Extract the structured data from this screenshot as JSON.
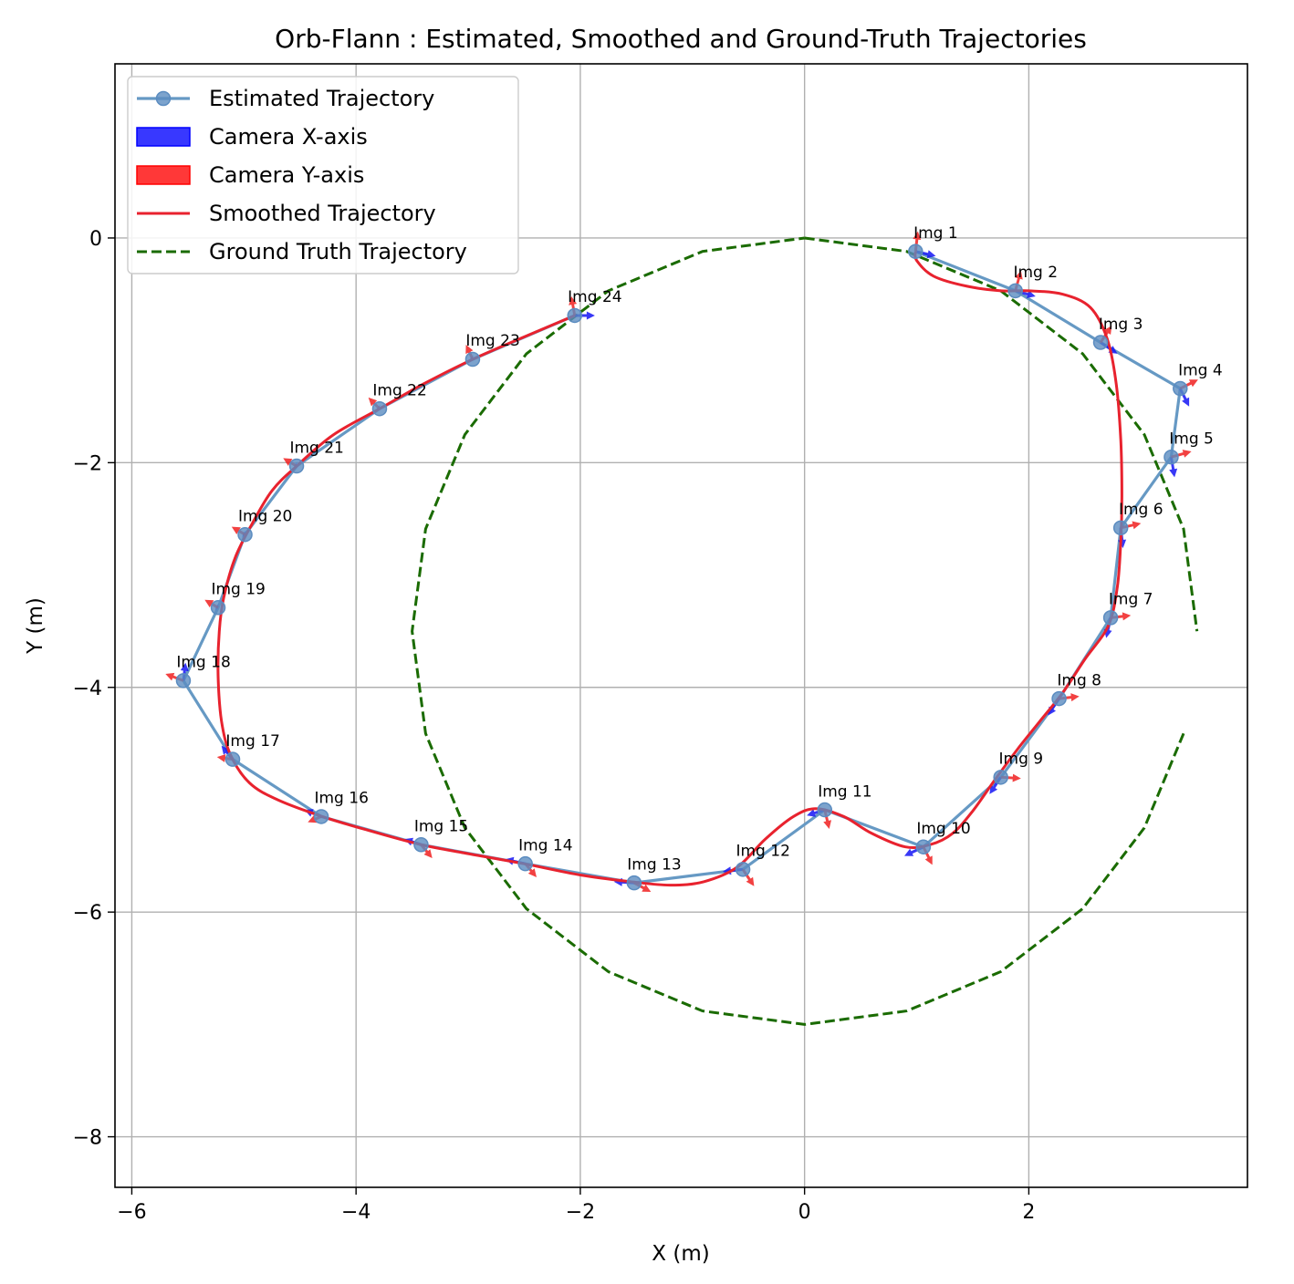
{
  "chart_data": {
    "type": "line",
    "title": "Orb-Flann : Estimated, Smoothed and Ground-Truth Trajectories",
    "xlabel": "X (m)",
    "ylabel": "Y (m)",
    "xlim": [
      -6.15,
      3.95
    ],
    "ylim": [
      -8.45,
      1.55
    ],
    "x_ticks": [
      -6,
      -4,
      -2,
      0,
      2
    ],
    "y_ticks": [
      0,
      -2,
      -4,
      -6,
      -8
    ],
    "x_tick_labels": [
      "−6",
      "−4",
      "−2",
      "0",
      "2"
    ],
    "y_tick_labels": [
      "0",
      "−2",
      "−4",
      "−6",
      "−8"
    ],
    "grid": true,
    "legend_position": "top-left",
    "legend": [
      {
        "label": "Estimated Trajectory",
        "kind": "line-marker",
        "color": "#6699c4"
      },
      {
        "label": "Camera X-axis",
        "kind": "patch",
        "color": "#0000ff"
      },
      {
        "label": "Camera Y-axis",
        "kind": "patch",
        "color": "#ff0000"
      },
      {
        "label": "Smoothed Trajectory",
        "kind": "line",
        "color": "#e8222e"
      },
      {
        "label": "Ground Truth Trajectory",
        "kind": "dashed",
        "color": "#1a6b00"
      }
    ],
    "colors": {
      "estimated": "#6699c4",
      "estimated_marker": "#5b8cc0",
      "smoothed": "#e8222e",
      "ground_truth": "#1a6b00",
      "camera_x": "#1515f5",
      "camera_y": "#f02020",
      "grid": "#b0b0b0"
    },
    "series": [
      {
        "name": "Estimated Trajectory",
        "points": [
          {
            "label": "Img 1",
            "x": 0.99,
            "y": -0.12
          },
          {
            "label": "Img 2",
            "x": 1.88,
            "y": -0.47
          },
          {
            "label": "Img 3",
            "x": 2.64,
            "y": -0.93
          },
          {
            "label": "Img 4",
            "x": 3.35,
            "y": -1.34
          },
          {
            "label": "Img 5",
            "x": 3.27,
            "y": -1.95
          },
          {
            "label": "Img 6",
            "x": 2.82,
            "y": -2.58
          },
          {
            "label": "Img 7",
            "x": 2.73,
            "y": -3.38
          },
          {
            "label": "Img 8",
            "x": 2.27,
            "y": -4.1
          },
          {
            "label": "Img 9",
            "x": 1.75,
            "y": -4.8
          },
          {
            "label": "Img 10",
            "x": 1.06,
            "y": -5.42
          },
          {
            "label": "Img 11",
            "x": 0.18,
            "y": -5.09
          },
          {
            "label": "Img 12",
            "x": -0.55,
            "y": -5.62
          },
          {
            "label": "Img 13",
            "x": -1.52,
            "y": -5.74
          },
          {
            "label": "Img 14",
            "x": -2.49,
            "y": -5.57
          },
          {
            "label": "Img 15",
            "x": -3.42,
            "y": -5.4
          },
          {
            "label": "Img 16",
            "x": -4.31,
            "y": -5.15
          },
          {
            "label": "Img 17",
            "x": -5.1,
            "y": -4.64
          },
          {
            "label": "Img 18",
            "x": -5.54,
            "y": -3.94
          },
          {
            "label": "Img 19",
            "x": -5.23,
            "y": -3.29
          },
          {
            "label": "Img 20",
            "x": -4.99,
            "y": -2.64
          },
          {
            "label": "Img 21",
            "x": -4.53,
            "y": -2.03
          },
          {
            "label": "Img 22",
            "x": -3.79,
            "y": -1.52
          },
          {
            "label": "Img 23",
            "x": -2.96,
            "y": -1.08
          },
          {
            "label": "Img 24",
            "x": -2.05,
            "y": -0.69
          }
        ]
      },
      {
        "name": "Smoothed Trajectory",
        "points": [
          [
            0.99,
            -0.12
          ],
          [
            1.0,
            -0.2
          ],
          [
            1.15,
            -0.34
          ],
          [
            1.45,
            -0.43
          ],
          [
            1.75,
            -0.47
          ],
          [
            2.0,
            -0.47
          ],
          [
            2.3,
            -0.5
          ],
          [
            2.55,
            -0.62
          ],
          [
            2.7,
            -0.9
          ],
          [
            2.78,
            -1.3
          ],
          [
            2.82,
            -1.8
          ],
          [
            2.83,
            -2.3
          ],
          [
            2.82,
            -2.7
          ],
          [
            2.79,
            -3.1
          ],
          [
            2.71,
            -3.45
          ],
          [
            2.5,
            -3.75
          ],
          [
            2.3,
            -4.05
          ],
          [
            2.1,
            -4.3
          ],
          [
            1.9,
            -4.55
          ],
          [
            1.7,
            -4.82
          ],
          [
            1.5,
            -5.1
          ],
          [
            1.32,
            -5.3
          ],
          [
            1.12,
            -5.4
          ],
          [
            0.9,
            -5.42
          ],
          [
            0.6,
            -5.3
          ],
          [
            0.35,
            -5.15
          ],
          [
            0.1,
            -5.08
          ],
          [
            -0.1,
            -5.15
          ],
          [
            -0.35,
            -5.35
          ],
          [
            -0.6,
            -5.6
          ],
          [
            -0.9,
            -5.73
          ],
          [
            -1.2,
            -5.76
          ],
          [
            -1.55,
            -5.73
          ],
          [
            -2.0,
            -5.67
          ],
          [
            -2.5,
            -5.57
          ],
          [
            -3.0,
            -5.48
          ],
          [
            -3.42,
            -5.4
          ],
          [
            -3.9,
            -5.27
          ],
          [
            -4.3,
            -5.15
          ],
          [
            -4.7,
            -5.0
          ],
          [
            -4.95,
            -4.85
          ],
          [
            -5.12,
            -4.6
          ],
          [
            -5.2,
            -4.3
          ],
          [
            -5.23,
            -3.9
          ],
          [
            -5.22,
            -3.5
          ],
          [
            -5.18,
            -3.2
          ],
          [
            -5.08,
            -2.85
          ],
          [
            -4.93,
            -2.55
          ],
          [
            -4.75,
            -2.25
          ],
          [
            -4.53,
            -2.03
          ],
          [
            -4.2,
            -1.75
          ],
          [
            -3.79,
            -1.52
          ],
          [
            -3.4,
            -1.3
          ],
          [
            -2.96,
            -1.08
          ],
          [
            -2.5,
            -0.88
          ],
          [
            -2.05,
            -0.69
          ]
        ]
      },
      {
        "name": "Ground Truth Trajectory",
        "points": [
          [
            0.0,
            0.0
          ],
          [
            0.91,
            -0.12
          ],
          [
            1.75,
            -0.47
          ],
          [
            2.48,
            -1.03
          ],
          [
            3.03,
            -1.75
          ],
          [
            3.38,
            -2.59
          ],
          [
            3.5,
            -3.5
          ],
          [
            null,
            null
          ],
          [
            3.38,
            -4.41
          ],
          [
            3.03,
            -5.25
          ],
          [
            2.48,
            -5.97
          ],
          [
            1.75,
            -6.53
          ],
          [
            0.91,
            -6.88
          ],
          [
            0.0,
            -7.0
          ],
          [
            -0.91,
            -6.88
          ],
          [
            -1.75,
            -6.53
          ],
          [
            -2.48,
            -5.97
          ],
          [
            -3.03,
            -5.25
          ],
          [
            -3.38,
            -4.41
          ],
          [
            -3.5,
            -3.5
          ],
          [
            -3.38,
            -2.59
          ],
          [
            -3.03,
            -1.75
          ],
          [
            -2.48,
            -1.03
          ],
          [
            -1.75,
            -0.47
          ],
          [
            -0.91,
            -0.12
          ],
          [
            0.0,
            0.0
          ]
        ]
      }
    ],
    "camera_axes": [
      {
        "label": "Img 1",
        "x_dir": [
          0.18,
          -0.04
        ],
        "y_dir": [
          0.02,
          0.18
        ]
      },
      {
        "label": "Img 2",
        "x_dir": [
          0.18,
          -0.05
        ],
        "y_dir": [
          0.05,
          0.18
        ]
      },
      {
        "label": "Img 3",
        "x_dir": [
          0.15,
          -0.1
        ],
        "y_dir": [
          0.1,
          0.15
        ]
      },
      {
        "label": "Img 4",
        "x_dir": [
          0.08,
          -0.16
        ],
        "y_dir": [
          0.16,
          0.08
        ]
      },
      {
        "label": "Img 5",
        "x_dir": [
          0.03,
          -0.18
        ],
        "y_dir": [
          0.18,
          0.05
        ]
      },
      {
        "label": "Img 6",
        "x_dir": [
          0.02,
          -0.18
        ],
        "y_dir": [
          0.18,
          0.04
        ]
      },
      {
        "label": "Img 7",
        "x_dir": [
          -0.04,
          -0.18
        ],
        "y_dir": [
          0.18,
          0.02
        ]
      },
      {
        "label": "Img 8",
        "x_dir": [
          -0.1,
          -0.15
        ],
        "y_dir": [
          0.18,
          0.02
        ]
      },
      {
        "label": "Img 9",
        "x_dir": [
          -0.1,
          -0.15
        ],
        "y_dir": [
          0.18,
          -0.01
        ]
      },
      {
        "label": "Img 10",
        "x_dir": [
          -0.17,
          -0.08
        ],
        "y_dir": [
          0.08,
          -0.16
        ]
      },
      {
        "label": "Img 11",
        "x_dir": [
          -0.16,
          -0.05
        ],
        "y_dir": [
          0.04,
          -0.17
        ]
      },
      {
        "label": "Img 12",
        "x_dir": [
          -0.18,
          -0.02
        ],
        "y_dir": [
          0.1,
          -0.15
        ]
      },
      {
        "label": "Img 13",
        "x_dir": [
          -0.18,
          0.01
        ],
        "y_dir": [
          0.15,
          -0.08
        ]
      },
      {
        "label": "Img 14",
        "x_dir": [
          -0.18,
          0.04
        ],
        "y_dir": [
          0.1,
          -0.12
        ]
      },
      {
        "label": "Img 15",
        "x_dir": [
          -0.15,
          0.05
        ],
        "y_dir": [
          0.1,
          -0.12
        ]
      },
      {
        "label": "Img 16",
        "x_dir": [
          -0.15,
          0.06
        ],
        "y_dir": [
          -0.12,
          -0.05
        ]
      },
      {
        "label": "Img 17",
        "x_dir": [
          -0.1,
          0.12
        ],
        "y_dir": [
          -0.14,
          0.02
        ]
      },
      {
        "label": "Img 18",
        "x_dir": [
          0.02,
          0.16
        ],
        "y_dir": [
          -0.16,
          0.06
        ]
      },
      {
        "label": "Img 19",
        "x_dir": [
          -0.02,
          0.01
        ],
        "y_dir": [
          -0.12,
          0.07
        ]
      },
      {
        "label": "Img 20",
        "x_dir": [
          -0.02,
          0.01
        ],
        "y_dir": [
          -0.12,
          0.07
        ]
      },
      {
        "label": "Img 21",
        "x_dir": [
          -0.02,
          0.01
        ],
        "y_dir": [
          -0.12,
          0.07
        ]
      },
      {
        "label": "Img 22",
        "x_dir": [
          -0.02,
          0.01
        ],
        "y_dir": [
          -0.1,
          0.1
        ]
      },
      {
        "label": "Img 23",
        "x_dir": [
          -0.02,
          0.01
        ],
        "y_dir": [
          -0.06,
          0.13
        ]
      },
      {
        "label": "Img 24",
        "x_dir": [
          0.18,
          0.0
        ],
        "y_dir": [
          -0.03,
          0.17
        ]
      }
    ]
  }
}
